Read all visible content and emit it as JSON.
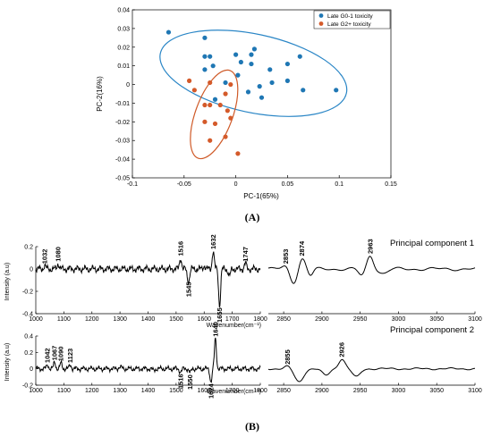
{
  "colors": {
    "g01": "#1f77b4",
    "g2": "#d45a2a",
    "ellipse_g01": "#2a86c6",
    "ellipse_g2": "#cf5a28"
  },
  "panel_labels": {
    "a": "(A)",
    "b": "(B)"
  },
  "chart_data": [
    {
      "type": "scatter",
      "xlabel": "PC-1(65%)",
      "ylabel": "PC-2(16%)",
      "xlim": [
        -0.1,
        0.15
      ],
      "ylim": [
        -0.05,
        0.04
      ],
      "xticks": [
        "-0.1",
        "-0.05",
        "0",
        "0.05",
        "0.1",
        "0.15"
      ],
      "yticks": [
        "0.04",
        "0.03",
        "0.02",
        "0.01",
        "0",
        "-0.01",
        "-0.02",
        "-0.03",
        "-0.04",
        "-0.05"
      ],
      "legend_position": "top-right",
      "grid": false,
      "series": [
        {
          "name": "Late G0-1 toxicity",
          "color": "#1f77b4",
          "points": [
            [
              -0.065,
              0.028
            ],
            [
              -0.03,
              0.025
            ],
            [
              -0.03,
              0.015
            ],
            [
              -0.025,
              0.015
            ],
            [
              -0.022,
              0.01
            ],
            [
              -0.03,
              0.008
            ],
            [
              0,
              0.016
            ],
            [
              0.018,
              0.019
            ],
            [
              0.015,
              0.016
            ],
            [
              0.005,
              0.012
            ],
            [
              0.015,
              0.011
            ],
            [
              0.033,
              0.008
            ],
            [
              0.05,
              0.011
            ],
            [
              0.062,
              0.015
            ],
            [
              0.002,
              0.005
            ],
            [
              0.023,
              -0.001
            ],
            [
              0.035,
              0.001
            ],
            [
              0.05,
              0.002
            ],
            [
              0.065,
              -0.003
            ],
            [
              0.097,
              -0.003
            ],
            [
              -0.01,
              0.001
            ],
            [
              -0.02,
              -0.008
            ],
            [
              0.025,
              -0.007
            ],
            [
              0.012,
              -0.004
            ]
          ]
        },
        {
          "name": "Late G2+ toxicity",
          "color": "#d45a2a",
          "points": [
            [
              -0.045,
              0.002
            ],
            [
              -0.04,
              -0.003
            ],
            [
              -0.025,
              0.001
            ],
            [
              -0.01,
              -0.005
            ],
            [
              -0.005,
              0
            ],
            [
              -0.03,
              -0.011
            ],
            [
              -0.025,
              -0.011
            ],
            [
              -0.015,
              -0.011
            ],
            [
              -0.008,
              -0.014
            ],
            [
              -0.03,
              -0.02
            ],
            [
              -0.02,
              -0.021
            ],
            [
              -0.005,
              -0.018
            ],
            [
              -0.025,
              -0.03
            ],
            [
              -0.01,
              -0.028
            ],
            [
              0.002,
              -0.037
            ]
          ]
        }
      ],
      "ellipses": [
        {
          "series": "Late G0-1 toxicity",
          "center": [
            0.017,
            0.006
          ],
          "semi_axes": [
            0.092,
            0.021
          ],
          "angle_deg": -12
        },
        {
          "series": "Late G2+ toxicity",
          "center": [
            -0.021,
            -0.016
          ],
          "semi_axes": [
            0.018,
            0.025
          ],
          "angle_deg": -20
        }
      ]
    },
    {
      "type": "line",
      "title": "Principal component 1",
      "xlabel": "Wavenumber(cm⁻¹)",
      "ylabel": "Intensity (a.u)",
      "ylim": [
        -0.4,
        0.2
      ],
      "yticks": [
        "0.2",
        "0",
        "-0.2",
        "-0.4"
      ],
      "range1": {
        "xlim": [
          1000,
          1800
        ],
        "xticks": [
          "1000",
          "1100",
          "1200",
          "1300",
          "1400",
          "1500",
          "1600",
          "1700",
          "1800"
        ]
      },
      "range2": {
        "xlim": [
          2830,
          3100
        ],
        "xticks": [
          "2850",
          "2900",
          "2950",
          "3000",
          "3050",
          "3100"
        ]
      },
      "peaks1": [
        {
          "label": "1032",
          "x": 1032,
          "y": 0.03
        },
        {
          "label": "1080",
          "x": 1080,
          "y": 0.05
        },
        {
          "label": "1516",
          "x": 1516,
          "y": 0.1
        },
        {
          "label": "1545",
          "x": 1545,
          "y": -0.1
        },
        {
          "label": "1632",
          "x": 1632,
          "y": 0.16
        },
        {
          "label": "1655",
          "x": 1655,
          "y": -0.33
        },
        {
          "label": "1747",
          "x": 1747,
          "y": 0.05
        }
      ],
      "peaks2": [
        {
          "label": "2853",
          "x": 2853,
          "y": 0.03
        },
        {
          "label": "2874",
          "x": 2874,
          "y": 0.1
        },
        {
          "label": "2963",
          "x": 2963,
          "y": 0.12
        }
      ]
    },
    {
      "type": "line",
      "title": "Principal component 2",
      "xlabel": "Wavenumber(cm⁻¹)",
      "ylabel": "Intensity (a.u)",
      "ylim": [
        -0.2,
        0.4
      ],
      "yticks": [
        "0.4",
        "0.2",
        "0",
        "-0.2"
      ],
      "range1": {
        "xlim": [
          1000,
          1800
        ],
        "xticks": [
          "1000",
          "1100",
          "1200",
          "1300",
          "1400",
          "1500",
          "1600",
          "1700",
          "1800"
        ]
      },
      "range2": {
        "xlim": [
          2830,
          3100
        ],
        "xticks": [
          "2850",
          "2900",
          "2950",
          "3000",
          "3050",
          "3100"
        ]
      },
      "peaks1": [
        {
          "label": "1042",
          "x": 1042,
          "y": 0.05
        },
        {
          "label": "1067",
          "x": 1067,
          "y": 0.08
        },
        {
          "label": "1090",
          "x": 1090,
          "y": 0.07
        },
        {
          "label": "1123",
          "x": 1123,
          "y": 0.05
        },
        {
          "label": "1516",
          "x": 1516,
          "y": -0.04
        },
        {
          "label": "1550",
          "x": 1550,
          "y": -0.05
        },
        {
          "label": "1624",
          "x": 1624,
          "y": -0.16
        },
        {
          "label": "1640",
          "x": 1640,
          "y": 0.37
        }
      ],
      "peaks2": [
        {
          "label": "2855",
          "x": 2855,
          "y": 0.03
        },
        {
          "label": "2926",
          "x": 2926,
          "y": 0.12
        }
      ]
    }
  ]
}
